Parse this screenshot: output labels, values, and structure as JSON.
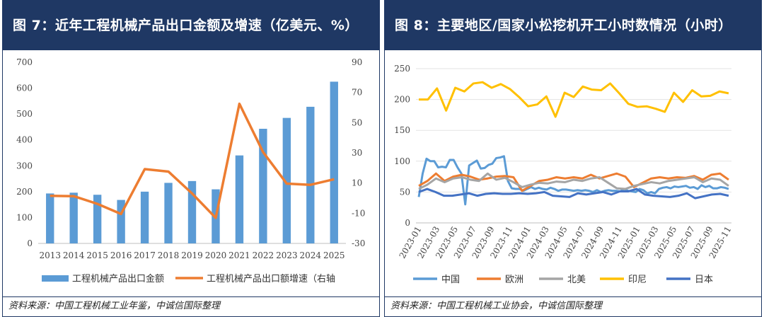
{
  "chart_data": [
    {
      "type": "bar+line",
      "title": "图 7：近年工程机械产品出口金额及增速（亿美元、%）",
      "source": "资料来源：中国工程机械工业年鉴，中诚信国际整理",
      "categories": [
        "2013",
        "2014",
        "2015",
        "2016",
        "2017",
        "2018",
        "2019",
        "2020",
        "2021",
        "2022",
        "2023",
        "2024",
        "2025"
      ],
      "series": [
        {
          "name": "工程机械产品出口金额",
          "kind": "bar",
          "axis": "left",
          "color": "#5b9bd5",
          "values": [
            193,
            196,
            188,
            168,
            200,
            234,
            241,
            209,
            340,
            443,
            485,
            528,
            625
          ]
        },
        {
          "name": "工程机械产品出口额增速（右轴",
          "kind": "line",
          "axis": "right",
          "color": "#ed7d31",
          "values": [
            1.5,
            1.3,
            -3.8,
            -10.5,
            19.2,
            17.6,
            3.1,
            -13.1,
            62.5,
            30.5,
            9.6,
            8.8,
            12.5
          ]
        }
      ],
      "ylim_left": [
        0,
        700
      ],
      "yticks_left": [
        "0",
        "100",
        "200",
        "300",
        "400",
        "500",
        "600",
        "700"
      ],
      "ylim_right": [
        -30,
        90
      ],
      "yticks_right": [
        "-30",
        "-10",
        "10",
        "30",
        "50",
        "70",
        "90"
      ],
      "grid": false,
      "legend": "bottom"
    },
    {
      "type": "line",
      "title": "图 8：主要地区/国家小松挖机开工小时数情况（小时）",
      "source": "资料来源：中国工程机械工业协会，中诚信国际整理",
      "x_tick_labels": [
        "2023-01",
        "2023-03",
        "2023-05",
        "2023-07",
        "2023-09",
        "2023-11",
        "2024-01",
        "2024-03",
        "2024-05",
        "2024-07",
        "2024-09",
        "2024-11",
        "2025-01",
        "2025-03",
        "2025-05",
        "2025-07",
        "2025-09",
        "2025-11"
      ],
      "ylim": [
        0,
        250
      ],
      "yticks": [
        "0",
        "50",
        "100",
        "150",
        "200",
        "250"
      ],
      "grid": true,
      "legend": "bottom",
      "series": [
        {
          "name": "中国",
          "color": "#5b9bd5",
          "values": [
            42,
            80,
            104,
            100,
            100,
            90,
            91,
            90,
            102,
            102,
            90,
            80,
            30,
            93,
            97,
            101,
            88,
            89,
            94,
            96,
            105,
            106,
            108,
            68,
            56,
            55,
            55,
            52,
            55,
            58,
            55,
            57,
            55,
            54,
            57,
            55,
            52,
            54,
            54,
            53,
            52,
            53,
            52,
            53,
            52,
            50,
            53,
            50,
            52,
            53,
            52,
            52,
            51,
            55,
            52,
            51,
            50,
            55,
            53,
            48,
            50,
            48,
            55,
            57,
            58,
            56,
            59,
            58,
            59,
            60,
            57,
            58,
            55,
            61,
            58,
            60,
            56,
            56,
            58,
            57,
            55
          ]
        },
        {
          "name": "欧洲",
          "color": "#ed7d31",
          "values": [
            60,
            68,
            80,
            68,
            75,
            78,
            75,
            70,
            72,
            75,
            76,
            74,
            52,
            60,
            68,
            70,
            74,
            72,
            74,
            72,
            78,
            72,
            76,
            80,
            75,
            58,
            65,
            72,
            74,
            72,
            74,
            73,
            76,
            70,
            78,
            80,
            70
          ]
        },
        {
          "name": "北美",
          "color": "#a5a5a5",
          "values": [
            55,
            62,
            72,
            66,
            72,
            74,
            70,
            68,
            80,
            70,
            73,
            66,
            58,
            62,
            65,
            64,
            67,
            66,
            70,
            68,
            72,
            74,
            65,
            56,
            55,
            60,
            63,
            66,
            64,
            68,
            70,
            72,
            74,
            66,
            72,
            70,
            60
          ]
        },
        {
          "name": "印尼",
          "color": "#ffc000",
          "values": [
            200,
            200,
            218,
            182,
            219,
            213,
            226,
            228,
            219,
            225,
            217,
            204,
            189,
            192,
            205,
            172,
            211,
            204,
            221,
            216,
            215,
            226,
            210,
            193,
            188,
            189,
            185,
            180,
            211,
            196,
            215,
            205,
            206,
            213,
            210
          ]
        },
        {
          "name": "日本",
          "color": "#4472c4",
          "values": [
            50,
            55,
            50,
            44,
            44,
            46,
            48,
            44,
            47,
            48,
            47,
            47,
            48,
            47,
            48,
            50,
            44,
            43,
            42,
            48,
            46,
            48,
            50,
            46,
            51,
            51,
            55,
            46,
            44,
            43,
            42,
            44,
            48,
            40,
            43,
            46,
            47,
            44
          ]
        }
      ]
    }
  ]
}
